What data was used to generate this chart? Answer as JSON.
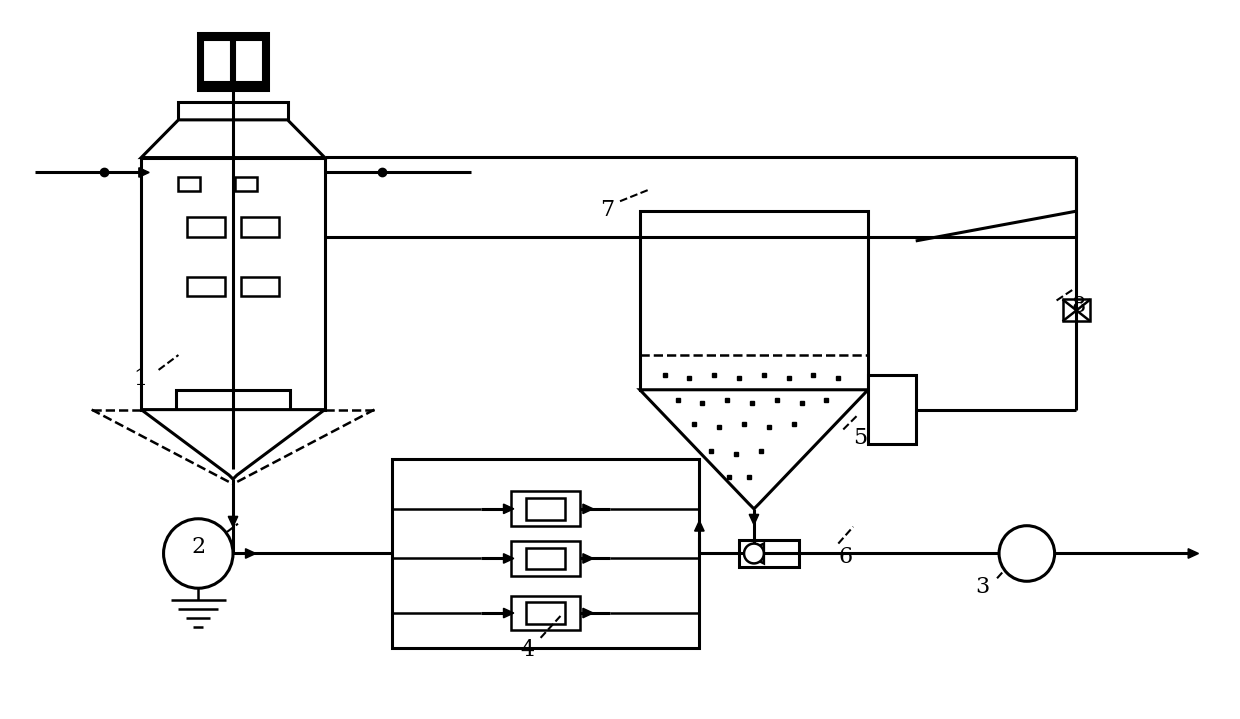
{
  "bg_color": "#ffffff",
  "lc": "#000000",
  "lw": 2.2,
  "lw_thin": 1.8,
  "figsize": [
    12.4,
    7.19
  ],
  "dpi": 100
}
